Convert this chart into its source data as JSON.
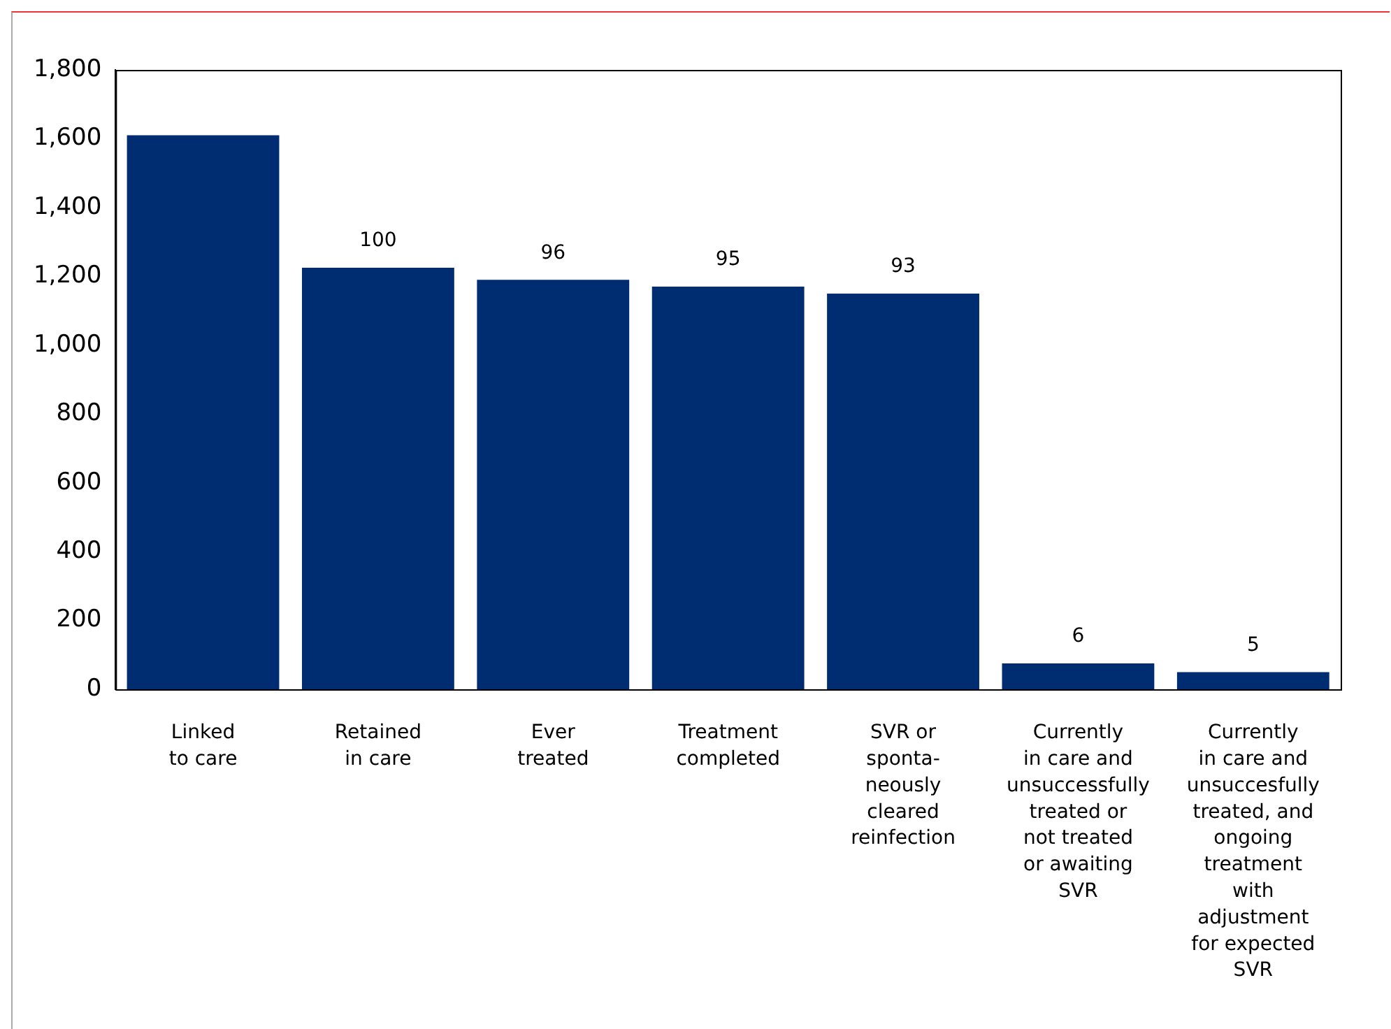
{
  "chart_data": {
    "type": "bar",
    "categories": [
      "Linked\nto care",
      "Retained\nin care",
      "Ever\ntreated",
      "Treatment\ncompleted",
      "SVR or\nsponta-\nneously\ncleared\nreinfection",
      "Currently\nin care and\nunsuccessfully\ntreated or\nnot treated\nor awaiting\nSVR",
      "Currently\nin care and\nunsuccesfully\ntreated, and\nongoing\ntreatment\nwith\nadjustment\nfor expected\nSVR"
    ],
    "values": [
      1610,
      1225,
      1190,
      1170,
      1150,
      75,
      50
    ],
    "annotations": [
      {
        "text": "100",
        "x": "Retained\nin care",
        "y": 1225
      },
      {
        "text": "96",
        "x": "Ever\ntreated",
        "y": 1190
      },
      {
        "text": "95",
        "x": "Treatment\ncompleted",
        "y": 1170
      },
      {
        "text": "93",
        "x": "SVR or\nsponta-\nneously\ncleared\nreinfection",
        "y": 1150
      },
      {
        "text": "6",
        "x": "Currently\nin care and\nunsuccessfully\ntreated or\nnot treated\nor awaiting\nSVR",
        "y": 75
      },
      {
        "text": "5",
        "x": "Currently\nin care and\nunsuccesfully\ntreated, and\nongoing\ntreatment\nwith\nadjustment\nfor expected\nSVR",
        "y": 50
      }
    ],
    "color": "#002d72",
    "ylim": [
      0,
      1800
    ],
    "yticks": [
      {
        "value": 0,
        "label": "0"
      },
      {
        "value": 200,
        "label": "200"
      },
      {
        "value": 400,
        "label": "400"
      },
      {
        "value": 600,
        "label": "600"
      },
      {
        "value": 800,
        "label": "800"
      },
      {
        "value": 1000,
        "label": "1,000"
      },
      {
        "value": 1200,
        "label": "1,200"
      },
      {
        "value": 1400,
        "label": "1,400"
      },
      {
        "value": 1600,
        "label": "1,600"
      },
      {
        "value": 1800,
        "label": "1,800"
      }
    ],
    "grid": false,
    "legend": false
  }
}
